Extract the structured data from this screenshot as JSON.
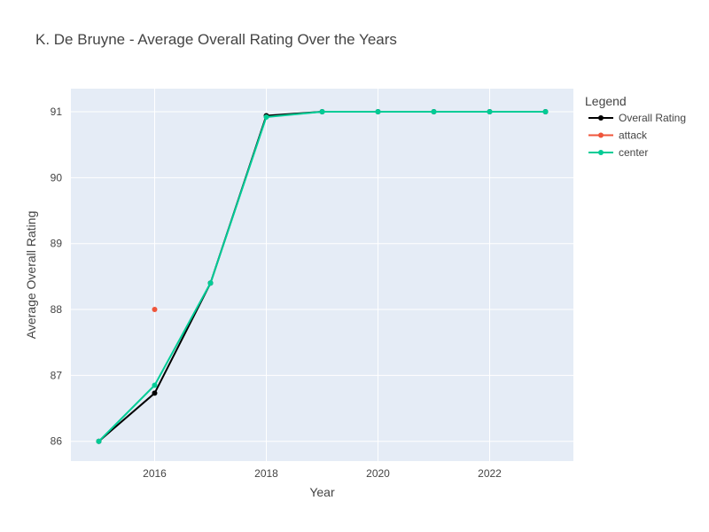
{
  "chart_data": {
    "type": "line",
    "title": "K. De Bruyne - Average Overall Rating Over the Years",
    "xlabel": "Year",
    "ylabel": "Average Overall Rating",
    "xlim": [
      2014.5,
      2023.5
    ],
    "ylim": [
      85.7,
      91.35
    ],
    "x_ticks": [
      2016,
      2018,
      2020,
      2022
    ],
    "y_ticks": [
      86,
      87,
      88,
      89,
      90,
      91
    ],
    "grid": true,
    "legend": {
      "title": "Legend",
      "placement": "right"
    },
    "series": [
      {
        "name": "Overall Rating",
        "color": "#000000",
        "x": [
          2015,
          2016,
          2017,
          2018,
          2019,
          2020,
          2021,
          2022,
          2023
        ],
        "y": [
          86.0,
          86.73,
          88.4,
          90.94,
          91.0,
          91.0,
          91.0,
          91.0,
          91.0
        ]
      },
      {
        "name": "attack",
        "color": "#EF553B",
        "x": [
          2016
        ],
        "y": [
          88.0
        ]
      },
      {
        "name": "center",
        "color": "#00CC96",
        "x": [
          2015,
          2016,
          2017,
          2018,
          2019,
          2020,
          2021,
          2022,
          2023
        ],
        "y": [
          86.0,
          86.85,
          88.4,
          90.92,
          91.0,
          91.0,
          91.0,
          91.0,
          91.0
        ]
      }
    ]
  }
}
